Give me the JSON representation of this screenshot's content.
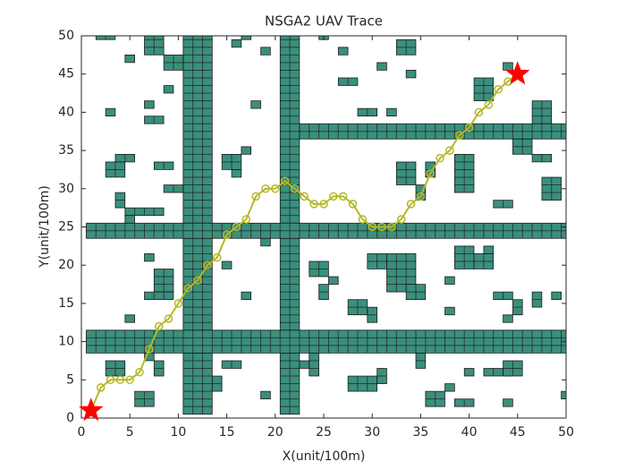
{
  "chart_data": {
    "type": "path-map",
    "title": "NSGA2 UAV Trace",
    "x_label": "X(unit/100m)",
    "y_label": "Y(unit/100m)",
    "xlim": [
      0,
      50
    ],
    "ylim": [
      0,
      50
    ],
    "xticks": [
      0,
      5,
      10,
      15,
      20,
      25,
      30,
      35,
      40,
      45,
      50
    ],
    "yticks": [
      0,
      5,
      10,
      15,
      20,
      25,
      30,
      35,
      40,
      45,
      50
    ],
    "obstacle_color": "#3a8f7d",
    "obstacles": [
      {
        "x": [
          11,
          13
        ],
        "y": [
          1,
          50
        ]
      },
      {
        "x": [
          9,
          10
        ],
        "y": [
          46,
          47
        ]
      },
      {
        "x": [
          21,
          22
        ],
        "y": [
          1,
          50
        ]
      },
      {
        "x": [
          1,
          50
        ],
        "y": [
          9,
          11
        ]
      },
      {
        "x": [
          1,
          50
        ],
        "y": [
          24,
          25
        ]
      },
      {
        "x": [
          23,
          50
        ],
        "y": [
          37,
          38
        ]
      },
      {
        "x": [
          2,
          3
        ],
        "y": [
          50,
          50
        ]
      },
      {
        "x": [
          5,
          5
        ],
        "y": [
          47,
          47
        ]
      },
      {
        "x": [
          7,
          8
        ],
        "y": [
          48,
          50
        ]
      },
      {
        "x": [
          16,
          16
        ],
        "y": [
          49,
          49
        ]
      },
      {
        "x": [
          17,
          17
        ],
        "y": [
          50,
          50
        ]
      },
      {
        "x": [
          19,
          19
        ],
        "y": [
          48,
          48
        ]
      },
      {
        "x": [
          25,
          25
        ],
        "y": [
          50,
          50
        ]
      },
      {
        "x": [
          27,
          27
        ],
        "y": [
          48,
          48
        ]
      },
      {
        "x": [
          33,
          34
        ],
        "y": [
          48,
          49
        ]
      },
      {
        "x": [
          31,
          31
        ],
        "y": [
          46,
          46
        ]
      },
      {
        "x": [
          34,
          34
        ],
        "y": [
          45,
          45
        ]
      },
      {
        "x": [
          27,
          28
        ],
        "y": [
          44,
          44
        ]
      },
      {
        "x": [
          41,
          42
        ],
        "y": [
          42,
          44
        ]
      },
      {
        "x": [
          44,
          44
        ],
        "y": [
          46,
          46
        ]
      },
      {
        "x": [
          3,
          3
        ],
        "y": [
          40,
          40
        ]
      },
      {
        "x": [
          7,
          7
        ],
        "y": [
          41,
          41
        ]
      },
      {
        "x": [
          7,
          8
        ],
        "y": [
          39,
          39
        ]
      },
      {
        "x": [
          9,
          9
        ],
        "y": [
          43,
          43
        ]
      },
      {
        "x": [
          18,
          18
        ],
        "y": [
          41,
          41
        ]
      },
      {
        "x": [
          29,
          30
        ],
        "y": [
          40,
          40
        ]
      },
      {
        "x": [
          32,
          32
        ],
        "y": [
          40,
          40
        ]
      },
      {
        "x": [
          47,
          48
        ],
        "y": [
          39,
          41
        ]
      },
      {
        "x": [
          4,
          5
        ],
        "y": [
          34,
          34
        ]
      },
      {
        "x": [
          3,
          4
        ],
        "y": [
          32,
          33
        ]
      },
      {
        "x": [
          15,
          16
        ],
        "y": [
          33,
          34
        ]
      },
      {
        "x": [
          16,
          16
        ],
        "y": [
          32,
          32
        ]
      },
      {
        "x": [
          17,
          17
        ],
        "y": [
          35,
          35
        ]
      },
      {
        "x": [
          9,
          10
        ],
        "y": [
          30,
          30
        ]
      },
      {
        "x": [
          8,
          9
        ],
        "y": [
          33,
          33
        ]
      },
      {
        "x": [
          4,
          4
        ],
        "y": [
          28,
          29
        ]
      },
      {
        "x": [
          5,
          8
        ],
        "y": [
          27,
          27
        ]
      },
      {
        "x": [
          5,
          5
        ],
        "y": [
          26,
          26
        ]
      },
      {
        "x": [
          33,
          34
        ],
        "y": [
          31,
          33
        ]
      },
      {
        "x": [
          35,
          35
        ],
        "y": [
          29,
          30
        ]
      },
      {
        "x": [
          36,
          36
        ],
        "y": [
          32,
          33
        ]
      },
      {
        "x": [
          39,
          40
        ],
        "y": [
          30,
          34
        ]
      },
      {
        "x": [
          43,
          44
        ],
        "y": [
          28,
          28
        ]
      },
      {
        "x": [
          48,
          49
        ],
        "y": [
          29,
          31
        ]
      },
      {
        "x": [
          47,
          48
        ],
        "y": [
          34,
          34
        ]
      },
      {
        "x": [
          45,
          46
        ],
        "y": [
          35,
          36
        ]
      },
      {
        "x": [
          7,
          7
        ],
        "y": [
          21,
          21
        ]
      },
      {
        "x": [
          8,
          9
        ],
        "y": [
          17,
          19
        ]
      },
      {
        "x": [
          7,
          9
        ],
        "y": [
          16,
          16
        ]
      },
      {
        "x": [
          15,
          15
        ],
        "y": [
          20,
          20
        ]
      },
      {
        "x": [
          17,
          17
        ],
        "y": [
          16,
          16
        ]
      },
      {
        "x": [
          19,
          19
        ],
        "y": [
          23,
          23
        ]
      },
      {
        "x": [
          24,
          25
        ],
        "y": [
          19,
          20
        ]
      },
      {
        "x": [
          26,
          26
        ],
        "y": [
          18,
          18
        ]
      },
      {
        "x": [
          25,
          25
        ],
        "y": [
          16,
          17
        ]
      },
      {
        "x": [
          30,
          31
        ],
        "y": [
          20,
          21
        ]
      },
      {
        "x": [
          32,
          34
        ],
        "y": [
          17,
          21
        ]
      },
      {
        "x": [
          34,
          35
        ],
        "y": [
          16,
          17
        ]
      },
      {
        "x": [
          28,
          29
        ],
        "y": [
          14,
          15
        ]
      },
      {
        "x": [
          30,
          30
        ],
        "y": [
          13,
          14
        ]
      },
      {
        "x": [
          38,
          38
        ],
        "y": [
          14,
          14
        ]
      },
      {
        "x": [
          39,
          40
        ],
        "y": [
          20,
          22
        ]
      },
      {
        "x": [
          41,
          42
        ],
        "y": [
          20,
          21
        ]
      },
      {
        "x": [
          42,
          42
        ],
        "y": [
          22,
          22
        ]
      },
      {
        "x": [
          38,
          38
        ],
        "y": [
          18,
          18
        ]
      },
      {
        "x": [
          43,
          44
        ],
        "y": [
          16,
          16
        ]
      },
      {
        "x": [
          45,
          45
        ],
        "y": [
          14,
          15
        ]
      },
      {
        "x": [
          44,
          44
        ],
        "y": [
          13,
          13
        ]
      },
      {
        "x": [
          47,
          47
        ],
        "y": [
          15,
          16
        ]
      },
      {
        "x": [
          49,
          49
        ],
        "y": [
          16,
          16
        ]
      },
      {
        "x": [
          5,
          5
        ],
        "y": [
          13,
          13
        ]
      },
      {
        "x": [
          3,
          4
        ],
        "y": [
          6,
          7
        ]
      },
      {
        "x": [
          7,
          7
        ],
        "y": [
          8,
          8
        ]
      },
      {
        "x": [
          8,
          8
        ],
        "y": [
          6,
          7
        ]
      },
      {
        "x": [
          15,
          16
        ],
        "y": [
          7,
          7
        ]
      },
      {
        "x": [
          14,
          14
        ],
        "y": [
          4,
          5
        ]
      },
      {
        "x": [
          6,
          7
        ],
        "y": [
          2,
          3
        ]
      },
      {
        "x": [
          24,
          24
        ],
        "y": [
          6,
          8
        ]
      },
      {
        "x": [
          23,
          23
        ],
        "y": [
          7,
          7
        ]
      },
      {
        "x": [
          19,
          19
        ],
        "y": [
          3,
          3
        ]
      },
      {
        "x": [
          28,
          30
        ],
        "y": [
          4,
          5
        ]
      },
      {
        "x": [
          31,
          31
        ],
        "y": [
          5,
          6
        ]
      },
      {
        "x": [
          35,
          35
        ],
        "y": [
          7,
          8
        ]
      },
      {
        "x": [
          36,
          37
        ],
        "y": [
          2,
          3
        ]
      },
      {
        "x": [
          38,
          38
        ],
        "y": [
          4,
          4
        ]
      },
      {
        "x": [
          40,
          40
        ],
        "y": [
          6,
          6
        ]
      },
      {
        "x": [
          42,
          44
        ],
        "y": [
          6,
          6
        ]
      },
      {
        "x": [
          44,
          45
        ],
        "y": [
          6,
          7
        ]
      },
      {
        "x": [
          39,
          40
        ],
        "y": [
          2,
          2
        ]
      },
      {
        "x": [
          44,
          44
        ],
        "y": [
          2,
          2
        ]
      },
      {
        "x": [
          50,
          50
        ],
        "y": [
          3,
          3
        ]
      }
    ],
    "path_color": "#b5b826",
    "x": [
      1,
      2,
      3,
      4,
      5,
      6,
      7,
      8,
      9,
      10,
      11,
      12,
      13,
      14,
      15,
      16,
      17,
      18,
      19,
      20,
      21,
      22,
      23,
      24,
      25,
      26,
      27,
      28,
      29,
      30,
      31,
      32,
      33,
      34,
      35,
      36,
      37,
      38,
      39,
      40,
      41,
      42,
      43,
      44,
      45
    ],
    "y": [
      1,
      4,
      5,
      5,
      5,
      6,
      9,
      12,
      13,
      15,
      17,
      18,
      20,
      21,
      24,
      25,
      26,
      29,
      30,
      30,
      31,
      30,
      29,
      28,
      28,
      29,
      29,
      28,
      26,
      25,
      25,
      25,
      26,
      28,
      29,
      32,
      34,
      35,
      37,
      38,
      40,
      41,
      43,
      44,
      45
    ],
    "endpoint_color": "#ff0000",
    "start": [
      1,
      1
    ],
    "goal": [
      45,
      45
    ]
  }
}
